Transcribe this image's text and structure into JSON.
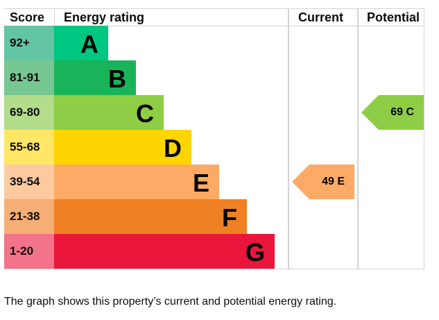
{
  "chart_data": {
    "type": "bar",
    "headers": {
      "score": "Score",
      "rating": "Energy rating",
      "current": "Current",
      "potential": "Potential"
    },
    "bands": [
      {
        "score": "92+",
        "letter": "A",
        "color": "#00c781",
        "score_color": "#64c5a5"
      },
      {
        "score": "81-91",
        "letter": "B",
        "color": "#19b459",
        "score_color": "#77c792"
      },
      {
        "score": "69-80",
        "letter": "C",
        "color": "#8dce46",
        "score_color": "#b3dd8b"
      },
      {
        "score": "55-68",
        "letter": "D",
        "color": "#ffd500",
        "score_color": "#ffe666"
      },
      {
        "score": "39-54",
        "letter": "E",
        "color": "#fcaa65",
        "score_color": "#fdc99f"
      },
      {
        "score": "21-38",
        "letter": "F",
        "color": "#ef8023",
        "score_color": "#f5ae76"
      },
      {
        "score": "1-20",
        "letter": "G",
        "color": "#e9153b",
        "score_color": "#f2738a"
      }
    ],
    "current": {
      "value": 49,
      "letter": "E",
      "label": "49  E",
      "color": "#fcaa65"
    },
    "potential": {
      "value": 69,
      "letter": "C",
      "label": "69  C",
      "color": "#8dce46"
    }
  },
  "caption": "The graph shows this property’s current and potential energy rating."
}
